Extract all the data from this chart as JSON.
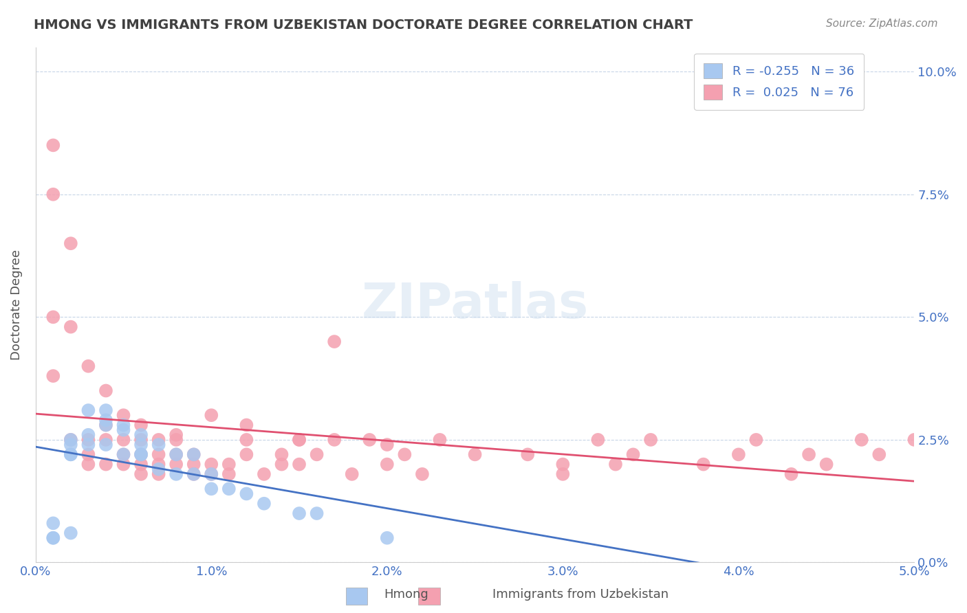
{
  "title": "HMONG VS IMMIGRANTS FROM UZBEKISTAN DOCTORATE DEGREE CORRELATION CHART",
  "source": "Source: ZipAtlas.com",
  "ylabel": "Doctorate Degree",
  "xlabel_ticks": [
    "0.0%",
    "1.0%",
    "2.0%",
    "3.0%",
    "4.0%",
    "5.0%"
  ],
  "ylabel_ticks": [
    "0.0%",
    "2.5%",
    "5.0%",
    "7.5%",
    "10.0%"
  ],
  "xlim": [
    0.0,
    0.05
  ],
  "ylim": [
    0.0,
    0.105
  ],
  "legend1_label": "R = -0.255   N = 36",
  "legend2_label": "R =  0.025   N = 76",
  "legend_title1": "Hmong",
  "legend_title2": "Immigrants from Uzbekistan",
  "color_hmong": "#a8c8f0",
  "color_uzbek": "#f4a0b0",
  "line_color_hmong": "#4472c4",
  "line_color_uzbek": "#e05070",
  "background": "#ffffff",
  "watermark": "ZIPatlas",
  "hmong_x": [
    0.001,
    0.001,
    0.001,
    0.002,
    0.002,
    0.002,
    0.002,
    0.002,
    0.003,
    0.003,
    0.003,
    0.004,
    0.004,
    0.004,
    0.004,
    0.005,
    0.005,
    0.005,
    0.006,
    0.006,
    0.006,
    0.006,
    0.007,
    0.007,
    0.008,
    0.008,
    0.009,
    0.009,
    0.01,
    0.01,
    0.011,
    0.012,
    0.013,
    0.015,
    0.016,
    0.02
  ],
  "hmong_y": [
    0.005,
    0.005,
    0.008,
    0.006,
    0.022,
    0.022,
    0.024,
    0.025,
    0.024,
    0.026,
    0.031,
    0.024,
    0.028,
    0.029,
    0.031,
    0.022,
    0.027,
    0.028,
    0.022,
    0.022,
    0.024,
    0.026,
    0.019,
    0.024,
    0.018,
    0.022,
    0.018,
    0.022,
    0.015,
    0.018,
    0.015,
    0.014,
    0.012,
    0.01,
    0.01,
    0.005
  ],
  "uzbek_x": [
    0.001,
    0.001,
    0.002,
    0.002,
    0.003,
    0.003,
    0.003,
    0.004,
    0.004,
    0.004,
    0.005,
    0.005,
    0.005,
    0.006,
    0.006,
    0.006,
    0.006,
    0.007,
    0.007,
    0.007,
    0.007,
    0.008,
    0.008,
    0.008,
    0.009,
    0.009,
    0.009,
    0.01,
    0.01,
    0.011,
    0.011,
    0.012,
    0.012,
    0.013,
    0.014,
    0.014,
    0.015,
    0.015,
    0.016,
    0.017,
    0.017,
    0.018,
    0.019,
    0.02,
    0.021,
    0.022,
    0.023,
    0.025,
    0.028,
    0.03,
    0.03,
    0.032,
    0.033,
    0.034,
    0.035,
    0.038,
    0.04,
    0.041,
    0.043,
    0.044,
    0.045,
    0.047,
    0.048,
    0.05,
    0.001,
    0.001,
    0.002,
    0.003,
    0.004,
    0.005,
    0.006,
    0.008,
    0.01,
    0.012,
    0.015,
    0.02
  ],
  "uzbek_y": [
    0.085,
    0.05,
    0.065,
    0.025,
    0.02,
    0.022,
    0.025,
    0.02,
    0.025,
    0.028,
    0.02,
    0.022,
    0.025,
    0.018,
    0.02,
    0.022,
    0.025,
    0.018,
    0.02,
    0.022,
    0.025,
    0.02,
    0.022,
    0.025,
    0.018,
    0.02,
    0.022,
    0.018,
    0.02,
    0.018,
    0.02,
    0.022,
    0.025,
    0.018,
    0.02,
    0.022,
    0.025,
    0.02,
    0.022,
    0.025,
    0.045,
    0.018,
    0.025,
    0.02,
    0.022,
    0.018,
    0.025,
    0.022,
    0.022,
    0.02,
    0.018,
    0.025,
    0.02,
    0.022,
    0.025,
    0.02,
    0.022,
    0.025,
    0.018,
    0.022,
    0.02,
    0.025,
    0.022,
    0.025,
    0.075,
    0.038,
    0.048,
    0.04,
    0.035,
    0.03,
    0.028,
    0.026,
    0.03,
    0.028,
    0.025,
    0.024
  ]
}
